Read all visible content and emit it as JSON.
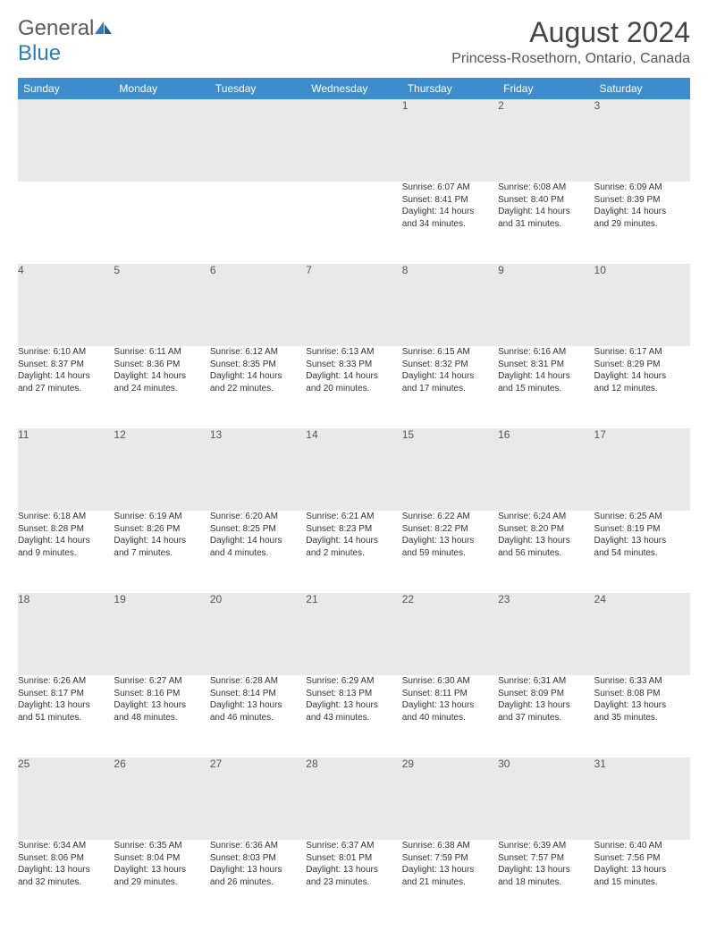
{
  "brand": {
    "name1": "General",
    "name2": "Blue"
  },
  "title": "August 2024",
  "location": "Princess-Rosethorn, Ontario, Canada",
  "colors": {
    "header_bg": "#3d8dcc",
    "daynum_bg": "#e9e9e9",
    "rule": "#2f6fa8",
    "text": "#333333",
    "logo_gray": "#5a5a5a",
    "logo_blue": "#2f7bbf"
  },
  "fonts": {
    "title_size": 32,
    "location_size": 16,
    "th_size": 12,
    "daynum_size": 12,
    "cell_size": 10
  },
  "day_headers": [
    "Sunday",
    "Monday",
    "Tuesday",
    "Wednesday",
    "Thursday",
    "Friday",
    "Saturday"
  ],
  "weeks": [
    [
      null,
      null,
      null,
      null,
      {
        "n": "1",
        "sr": "Sunrise: 6:07 AM",
        "ss": "Sunset: 8:41 PM",
        "d1": "Daylight: 14 hours",
        "d2": "and 34 minutes."
      },
      {
        "n": "2",
        "sr": "Sunrise: 6:08 AM",
        "ss": "Sunset: 8:40 PM",
        "d1": "Daylight: 14 hours",
        "d2": "and 31 minutes."
      },
      {
        "n": "3",
        "sr": "Sunrise: 6:09 AM",
        "ss": "Sunset: 8:39 PM",
        "d1": "Daylight: 14 hours",
        "d2": "and 29 minutes."
      }
    ],
    [
      {
        "n": "4",
        "sr": "Sunrise: 6:10 AM",
        "ss": "Sunset: 8:37 PM",
        "d1": "Daylight: 14 hours",
        "d2": "and 27 minutes."
      },
      {
        "n": "5",
        "sr": "Sunrise: 6:11 AM",
        "ss": "Sunset: 8:36 PM",
        "d1": "Daylight: 14 hours",
        "d2": "and 24 minutes."
      },
      {
        "n": "6",
        "sr": "Sunrise: 6:12 AM",
        "ss": "Sunset: 8:35 PM",
        "d1": "Daylight: 14 hours",
        "d2": "and 22 minutes."
      },
      {
        "n": "7",
        "sr": "Sunrise: 6:13 AM",
        "ss": "Sunset: 8:33 PM",
        "d1": "Daylight: 14 hours",
        "d2": "and 20 minutes."
      },
      {
        "n": "8",
        "sr": "Sunrise: 6:15 AM",
        "ss": "Sunset: 8:32 PM",
        "d1": "Daylight: 14 hours",
        "d2": "and 17 minutes."
      },
      {
        "n": "9",
        "sr": "Sunrise: 6:16 AM",
        "ss": "Sunset: 8:31 PM",
        "d1": "Daylight: 14 hours",
        "d2": "and 15 minutes."
      },
      {
        "n": "10",
        "sr": "Sunrise: 6:17 AM",
        "ss": "Sunset: 8:29 PM",
        "d1": "Daylight: 14 hours",
        "d2": "and 12 minutes."
      }
    ],
    [
      {
        "n": "11",
        "sr": "Sunrise: 6:18 AM",
        "ss": "Sunset: 8:28 PM",
        "d1": "Daylight: 14 hours",
        "d2": "and 9 minutes."
      },
      {
        "n": "12",
        "sr": "Sunrise: 6:19 AM",
        "ss": "Sunset: 8:26 PM",
        "d1": "Daylight: 14 hours",
        "d2": "and 7 minutes."
      },
      {
        "n": "13",
        "sr": "Sunrise: 6:20 AM",
        "ss": "Sunset: 8:25 PM",
        "d1": "Daylight: 14 hours",
        "d2": "and 4 minutes."
      },
      {
        "n": "14",
        "sr": "Sunrise: 6:21 AM",
        "ss": "Sunset: 8:23 PM",
        "d1": "Daylight: 14 hours",
        "d2": "and 2 minutes."
      },
      {
        "n": "15",
        "sr": "Sunrise: 6:22 AM",
        "ss": "Sunset: 8:22 PM",
        "d1": "Daylight: 13 hours",
        "d2": "and 59 minutes."
      },
      {
        "n": "16",
        "sr": "Sunrise: 6:24 AM",
        "ss": "Sunset: 8:20 PM",
        "d1": "Daylight: 13 hours",
        "d2": "and 56 minutes."
      },
      {
        "n": "17",
        "sr": "Sunrise: 6:25 AM",
        "ss": "Sunset: 8:19 PM",
        "d1": "Daylight: 13 hours",
        "d2": "and 54 minutes."
      }
    ],
    [
      {
        "n": "18",
        "sr": "Sunrise: 6:26 AM",
        "ss": "Sunset: 8:17 PM",
        "d1": "Daylight: 13 hours",
        "d2": "and 51 minutes."
      },
      {
        "n": "19",
        "sr": "Sunrise: 6:27 AM",
        "ss": "Sunset: 8:16 PM",
        "d1": "Daylight: 13 hours",
        "d2": "and 48 minutes."
      },
      {
        "n": "20",
        "sr": "Sunrise: 6:28 AM",
        "ss": "Sunset: 8:14 PM",
        "d1": "Daylight: 13 hours",
        "d2": "and 46 minutes."
      },
      {
        "n": "21",
        "sr": "Sunrise: 6:29 AM",
        "ss": "Sunset: 8:13 PM",
        "d1": "Daylight: 13 hours",
        "d2": "and 43 minutes."
      },
      {
        "n": "22",
        "sr": "Sunrise: 6:30 AM",
        "ss": "Sunset: 8:11 PM",
        "d1": "Daylight: 13 hours",
        "d2": "and 40 minutes."
      },
      {
        "n": "23",
        "sr": "Sunrise: 6:31 AM",
        "ss": "Sunset: 8:09 PM",
        "d1": "Daylight: 13 hours",
        "d2": "and 37 minutes."
      },
      {
        "n": "24",
        "sr": "Sunrise: 6:33 AM",
        "ss": "Sunset: 8:08 PM",
        "d1": "Daylight: 13 hours",
        "d2": "and 35 minutes."
      }
    ],
    [
      {
        "n": "25",
        "sr": "Sunrise: 6:34 AM",
        "ss": "Sunset: 8:06 PM",
        "d1": "Daylight: 13 hours",
        "d2": "and 32 minutes."
      },
      {
        "n": "26",
        "sr": "Sunrise: 6:35 AM",
        "ss": "Sunset: 8:04 PM",
        "d1": "Daylight: 13 hours",
        "d2": "and 29 minutes."
      },
      {
        "n": "27",
        "sr": "Sunrise: 6:36 AM",
        "ss": "Sunset: 8:03 PM",
        "d1": "Daylight: 13 hours",
        "d2": "and 26 minutes."
      },
      {
        "n": "28",
        "sr": "Sunrise: 6:37 AM",
        "ss": "Sunset: 8:01 PM",
        "d1": "Daylight: 13 hours",
        "d2": "and 23 minutes."
      },
      {
        "n": "29",
        "sr": "Sunrise: 6:38 AM",
        "ss": "Sunset: 7:59 PM",
        "d1": "Daylight: 13 hours",
        "d2": "and 21 minutes."
      },
      {
        "n": "30",
        "sr": "Sunrise: 6:39 AM",
        "ss": "Sunset: 7:57 PM",
        "d1": "Daylight: 13 hours",
        "d2": "and 18 minutes."
      },
      {
        "n": "31",
        "sr": "Sunrise: 6:40 AM",
        "ss": "Sunset: 7:56 PM",
        "d1": "Daylight: 13 hours",
        "d2": "and 15 minutes."
      }
    ]
  ]
}
